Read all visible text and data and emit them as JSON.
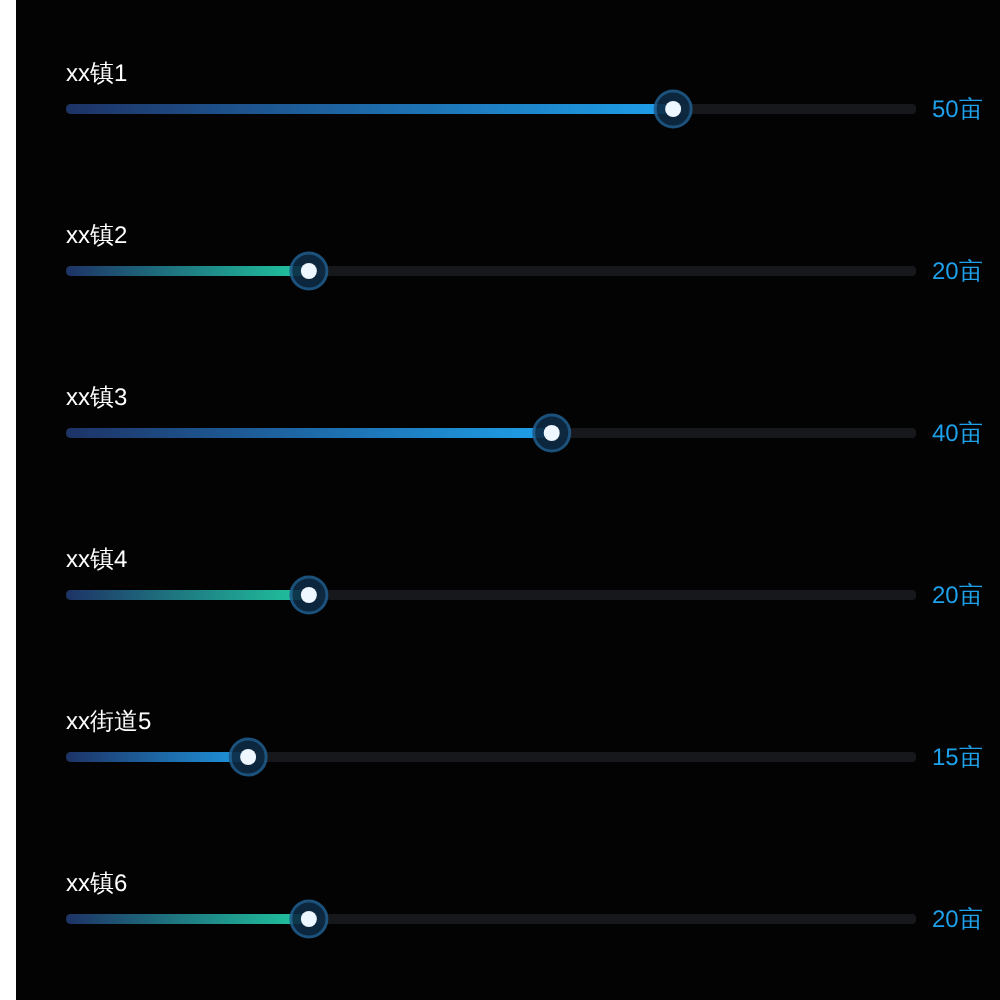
{
  "chart_data": {
    "type": "bar",
    "orientation": "horizontal",
    "categories": [
      "xx镇1",
      "xx镇2",
      "xx镇3",
      "xx镇4",
      "xx街道5",
      "xx镇6"
    ],
    "values": [
      50,
      20,
      40,
      20,
      15,
      20
    ],
    "colors": [
      "#1ea0ea",
      "#20c8a0",
      "#1ea0ea",
      "#20c8a0",
      "#1e98e0",
      "#20c8a0"
    ],
    "value_labels": [
      "50亩",
      "20亩",
      "40亩",
      "20亩",
      "15亩",
      "20亩"
    ],
    "xlim": [
      0,
      70
    ],
    "tick_labels": "y",
    "grid": false,
    "legend": false
  }
}
